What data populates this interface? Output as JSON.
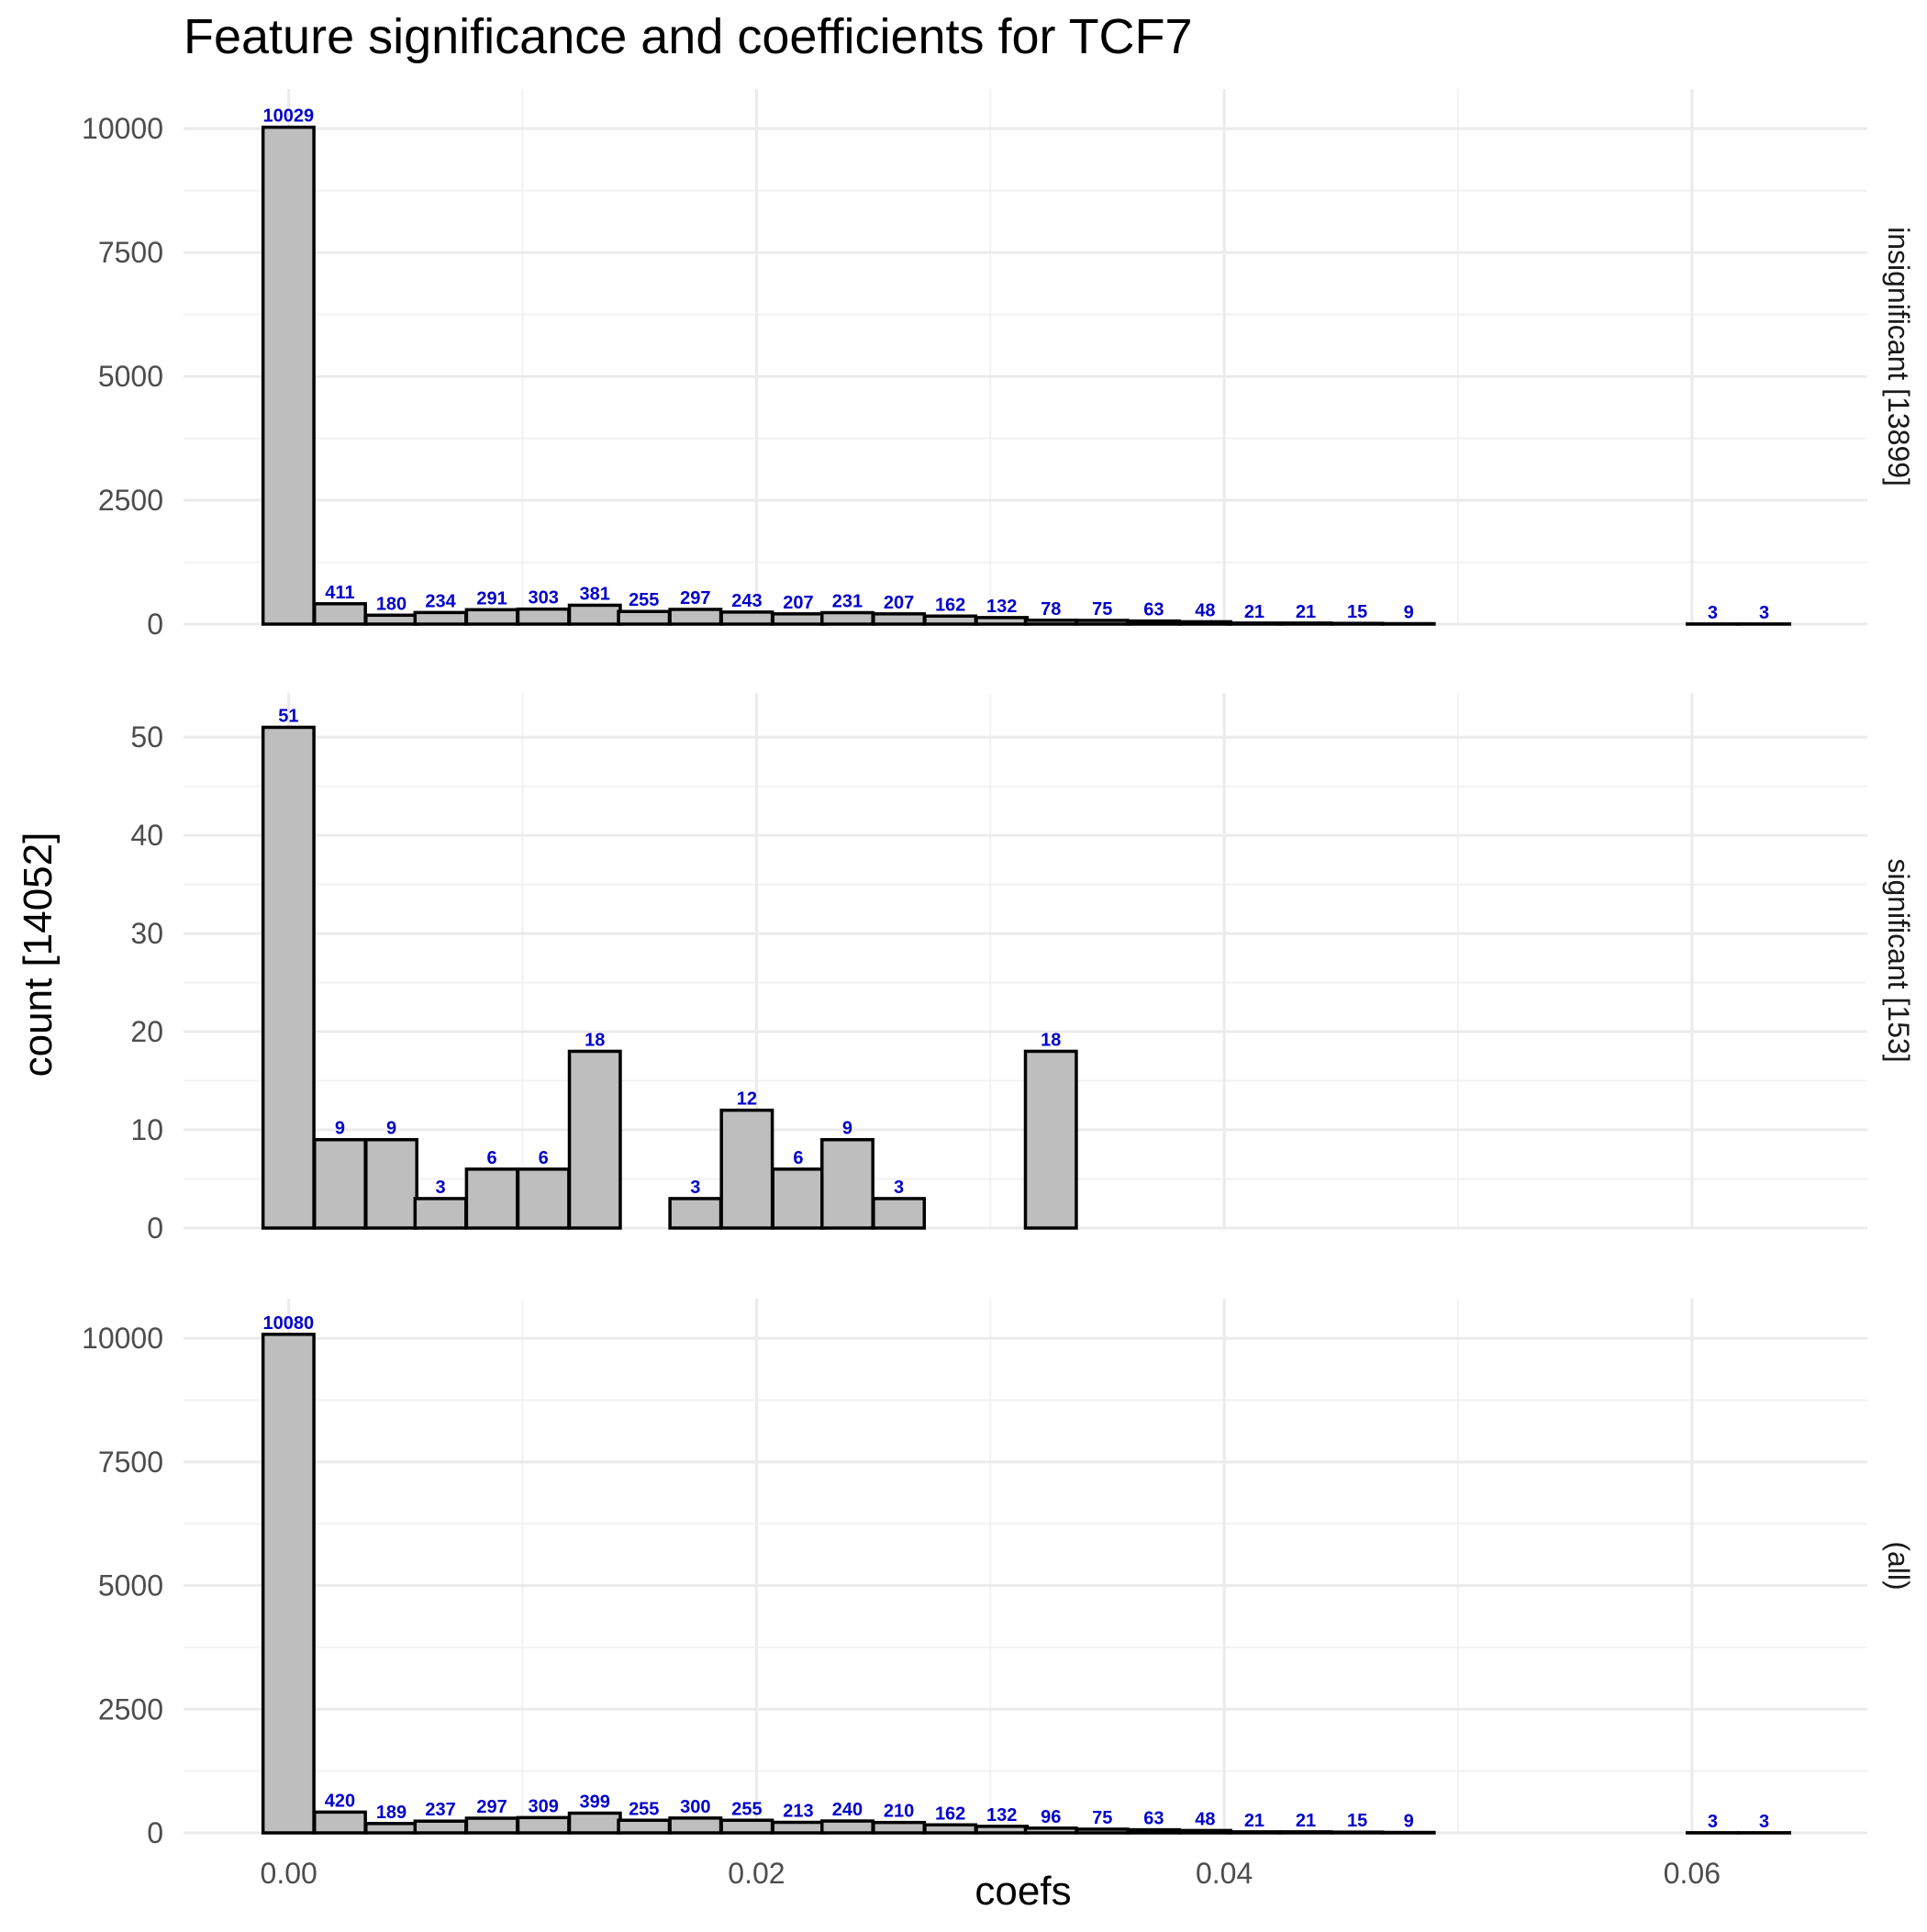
{
  "chart_data": {
    "type": "bar",
    "title": "Feature significance and coefficients for TCF7",
    "xlabel": "coefs",
    "ylabel": "count [14052]",
    "bin_starts": [
      -0.0011,
      0.0011,
      0.0033,
      0.0054,
      0.0076,
      0.0098,
      0.012,
      0.0141,
      0.0163,
      0.0185,
      0.0207,
      0.0228,
      0.025,
      0.0272,
      0.0294,
      0.0315,
      0.0337,
      0.0359,
      0.0381,
      0.0402,
      0.0424,
      0.0446,
      0.0468,
      0.0489,
      0.0511,
      0.0533,
      0.0555,
      0.0576,
      0.0598,
      0.062
    ],
    "bin_width": 0.002175,
    "xlim": [
      -0.0045,
      0.0675
    ],
    "x_ticks": [
      0.0,
      0.02,
      0.04,
      0.06
    ],
    "x_tick_labels": [
      "0.00",
      "0.02",
      "0.04",
      "0.06"
    ],
    "grid": true,
    "panels": [
      {
        "strip_label": "insignificant [13899]",
        "ylim": [
          0,
          10800
        ],
        "y_ticks": [
          0,
          2500,
          5000,
          7500,
          10000
        ],
        "y_tick_labels": [
          "0",
          "2500",
          "5000",
          "7500",
          "10000"
        ],
        "values": [
          10029,
          411,
          180,
          234,
          291,
          303,
          381,
          255,
          297,
          243,
          207,
          231,
          207,
          162,
          132,
          78,
          75,
          63,
          48,
          21,
          21,
          15,
          9,
          0,
          0,
          0,
          0,
          0,
          3,
          3
        ]
      },
      {
        "strip_label": "significant [153]",
        "ylim": [
          0,
          54.5
        ],
        "y_ticks": [
          0,
          10,
          20,
          30,
          40,
          50
        ],
        "y_tick_labels": [
          "0",
          "10",
          "20",
          "30",
          "40",
          "50"
        ],
        "values": [
          51,
          9,
          9,
          3,
          6,
          6,
          18,
          0,
          3,
          12,
          6,
          9,
          3,
          0,
          0,
          18,
          0,
          0,
          0,
          0,
          0,
          0,
          0,
          0,
          0,
          0,
          0,
          0,
          0,
          0
        ]
      },
      {
        "strip_label": "(all)",
        "ylim": [
          0,
          10800
        ],
        "y_ticks": [
          0,
          2500,
          5000,
          7500,
          10000
        ],
        "y_tick_labels": [
          "0",
          "2500",
          "5000",
          "7500",
          "10000"
        ],
        "values": [
          10080,
          420,
          189,
          237,
          297,
          309,
          399,
          255,
          300,
          255,
          213,
          240,
          210,
          162,
          132,
          96,
          75,
          63,
          48,
          21,
          21,
          15,
          9,
          0,
          0,
          0,
          0,
          0,
          3,
          3
        ]
      }
    ]
  }
}
